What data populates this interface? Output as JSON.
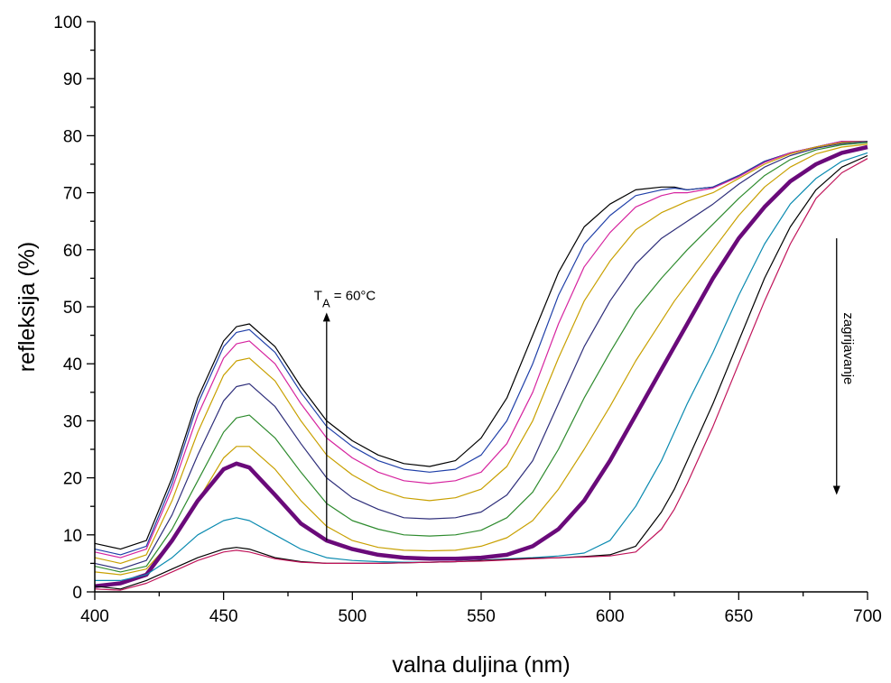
{
  "chart_data": {
    "type": "line",
    "title": "",
    "xlabel": "valna duljina (nm)",
    "ylabel": "refleksija (%)",
    "xlim": [
      400,
      700
    ],
    "ylim": [
      0,
      100
    ],
    "xticks": [
      400,
      450,
      500,
      550,
      600,
      650,
      700
    ],
    "yticks": [
      0,
      10,
      20,
      30,
      40,
      50,
      60,
      70,
      80,
      90,
      100
    ],
    "grid": false,
    "legend": "none",
    "x": [
      400,
      410,
      420,
      430,
      440,
      450,
      455,
      460,
      470,
      480,
      490,
      500,
      510,
      520,
      530,
      540,
      550,
      560,
      570,
      580,
      590,
      600,
      610,
      620,
      625,
      630,
      640,
      650,
      660,
      670,
      680,
      690,
      700
    ],
    "series": [
      {
        "color": "#000000",
        "values": [
          8.5,
          7.5,
          9.0,
          20.0,
          34.0,
          44.0,
          46.5,
          47.0,
          43.0,
          36.0,
          30.0,
          26.5,
          24.0,
          22.5,
          22.0,
          23.0,
          27.0,
          34.0,
          45.0,
          56.0,
          64.0,
          68.0,
          70.5,
          71.0,
          71.0,
          70.5,
          71.0,
          73.0,
          75.5,
          77.0,
          78.0,
          79.0,
          79.0
        ]
      },
      {
        "color": "#1f3fa8",
        "values": [
          7.5,
          6.5,
          8.0,
          19.0,
          33.0,
          43.0,
          45.5,
          46.0,
          42.0,
          35.0,
          29.0,
          25.5,
          23.0,
          21.5,
          21.0,
          21.5,
          24.0,
          30.0,
          40.0,
          52.0,
          61.0,
          66.0,
          69.5,
          70.5,
          70.8,
          70.5,
          71.0,
          73.0,
          75.5,
          77.0,
          78.0,
          79.0,
          79.0
        ]
      },
      {
        "color": "#d6249f",
        "values": [
          7.0,
          6.0,
          7.5,
          18.0,
          31.0,
          41.0,
          43.5,
          44.0,
          40.0,
          33.0,
          27.0,
          23.5,
          21.0,
          19.5,
          19.0,
          19.5,
          21.0,
          26.0,
          35.0,
          47.0,
          57.0,
          63.0,
          67.5,
          69.5,
          70.0,
          70.0,
          70.8,
          72.8,
          75.3,
          77.0,
          78.0,
          79.0,
          79.0
        ]
      },
      {
        "color": "#c8a000",
        "values": [
          6.0,
          5.0,
          6.5,
          16.0,
          28.0,
          38.0,
          40.5,
          41.0,
          37.0,
          30.0,
          24.0,
          20.5,
          18.0,
          16.5,
          16.0,
          16.5,
          18.0,
          22.0,
          30.0,
          41.0,
          51.0,
          58.0,
          63.5,
          66.5,
          67.5,
          68.5,
          70.0,
          72.5,
          75.0,
          76.8,
          78.0,
          78.8,
          79.0
        ]
      },
      {
        "color": "#2e2e7a",
        "values": [
          5.0,
          4.0,
          5.5,
          13.5,
          24.0,
          33.5,
          36.0,
          36.5,
          32.5,
          26.0,
          20.0,
          16.5,
          14.5,
          13.0,
          12.8,
          13.0,
          14.0,
          17.0,
          23.0,
          33.0,
          43.0,
          51.0,
          57.5,
          62.0,
          63.5,
          65.0,
          68.0,
          71.5,
          74.5,
          76.5,
          77.8,
          78.6,
          79.0
        ]
      },
      {
        "color": "#2e8b2e",
        "values": [
          4.5,
          3.5,
          4.5,
          11.0,
          19.5,
          28.0,
          30.5,
          31.0,
          27.0,
          21.0,
          15.5,
          12.5,
          11.0,
          10.0,
          9.8,
          10.0,
          10.8,
          13.0,
          17.5,
          25.0,
          34.0,
          42.0,
          49.5,
          55.0,
          57.5,
          60.0,
          64.5,
          69.0,
          73.0,
          75.8,
          77.5,
          78.4,
          78.8
        ]
      },
      {
        "color": "#c8a000",
        "values": [
          3.5,
          3.0,
          4.0,
          9.0,
          16.0,
          23.5,
          25.5,
          25.5,
          21.5,
          16.0,
          11.5,
          9.0,
          7.8,
          7.3,
          7.2,
          7.3,
          8.0,
          9.5,
          12.5,
          18.0,
          25.0,
          32.5,
          40.5,
          47.5,
          51.0,
          54.0,
          60.0,
          66.0,
          71.0,
          74.5,
          76.8,
          78.0,
          78.5
        ]
      },
      {
        "color": "#6a0a7a",
        "values": [
          1.0,
          1.5,
          3.0,
          9.0,
          16.0,
          21.5,
          22.5,
          21.8,
          17.0,
          12.0,
          9.0,
          7.5,
          6.5,
          6.0,
          5.8,
          5.8,
          6.0,
          6.5,
          8.0,
          11.0,
          16.0,
          23.0,
          31.0,
          39.0,
          43.0,
          47.0,
          55.0,
          62.0,
          67.5,
          72.0,
          75.0,
          77.0,
          78.0
        ]
      },
      {
        "color": "#0a8ab0",
        "values": [
          2.0,
          2.0,
          3.0,
          6.0,
          10.0,
          12.5,
          13.0,
          12.5,
          10.0,
          7.5,
          6.0,
          5.5,
          5.3,
          5.2,
          5.2,
          5.3,
          5.5,
          5.8,
          6.0,
          6.3,
          6.8,
          9.0,
          15.0,
          23.0,
          28.0,
          33.0,
          42.0,
          52.0,
          61.0,
          68.0,
          72.5,
          75.5,
          77.0
        ]
      },
      {
        "color": "#000000",
        "values": [
          1.0,
          0.5,
          2.0,
          4.0,
          6.0,
          7.5,
          7.8,
          7.5,
          6.0,
          5.3,
          5.0,
          5.0,
          5.0,
          5.1,
          5.2,
          5.3,
          5.5,
          5.7,
          5.9,
          6.0,
          6.2,
          6.5,
          8.0,
          14.0,
          18.0,
          23.0,
          33.0,
          44.0,
          55.0,
          64.0,
          70.5,
          74.5,
          76.5
        ]
      },
      {
        "color": "#c0145a",
        "values": [
          0.5,
          0.3,
          1.5,
          3.5,
          5.5,
          7.0,
          7.3,
          7.0,
          5.8,
          5.2,
          5.0,
          5.0,
          5.0,
          5.1,
          5.2,
          5.3,
          5.4,
          5.6,
          5.8,
          6.0,
          6.1,
          6.3,
          7.0,
          11.0,
          14.5,
          19.0,
          29.0,
          40.0,
          51.0,
          61.0,
          69.0,
          73.5,
          76.0
        ]
      }
    ],
    "annotations": [
      {
        "text": "T",
        "sub": "A",
        "rest": " = 60°C",
        "arrow": "up",
        "x": 490,
        "y_from": 9,
        "y_to": 49
      },
      {
        "text": "zagrijavanje",
        "arrow": "down",
        "x": 688,
        "y_from": 62,
        "y_to": 17
      }
    ]
  }
}
